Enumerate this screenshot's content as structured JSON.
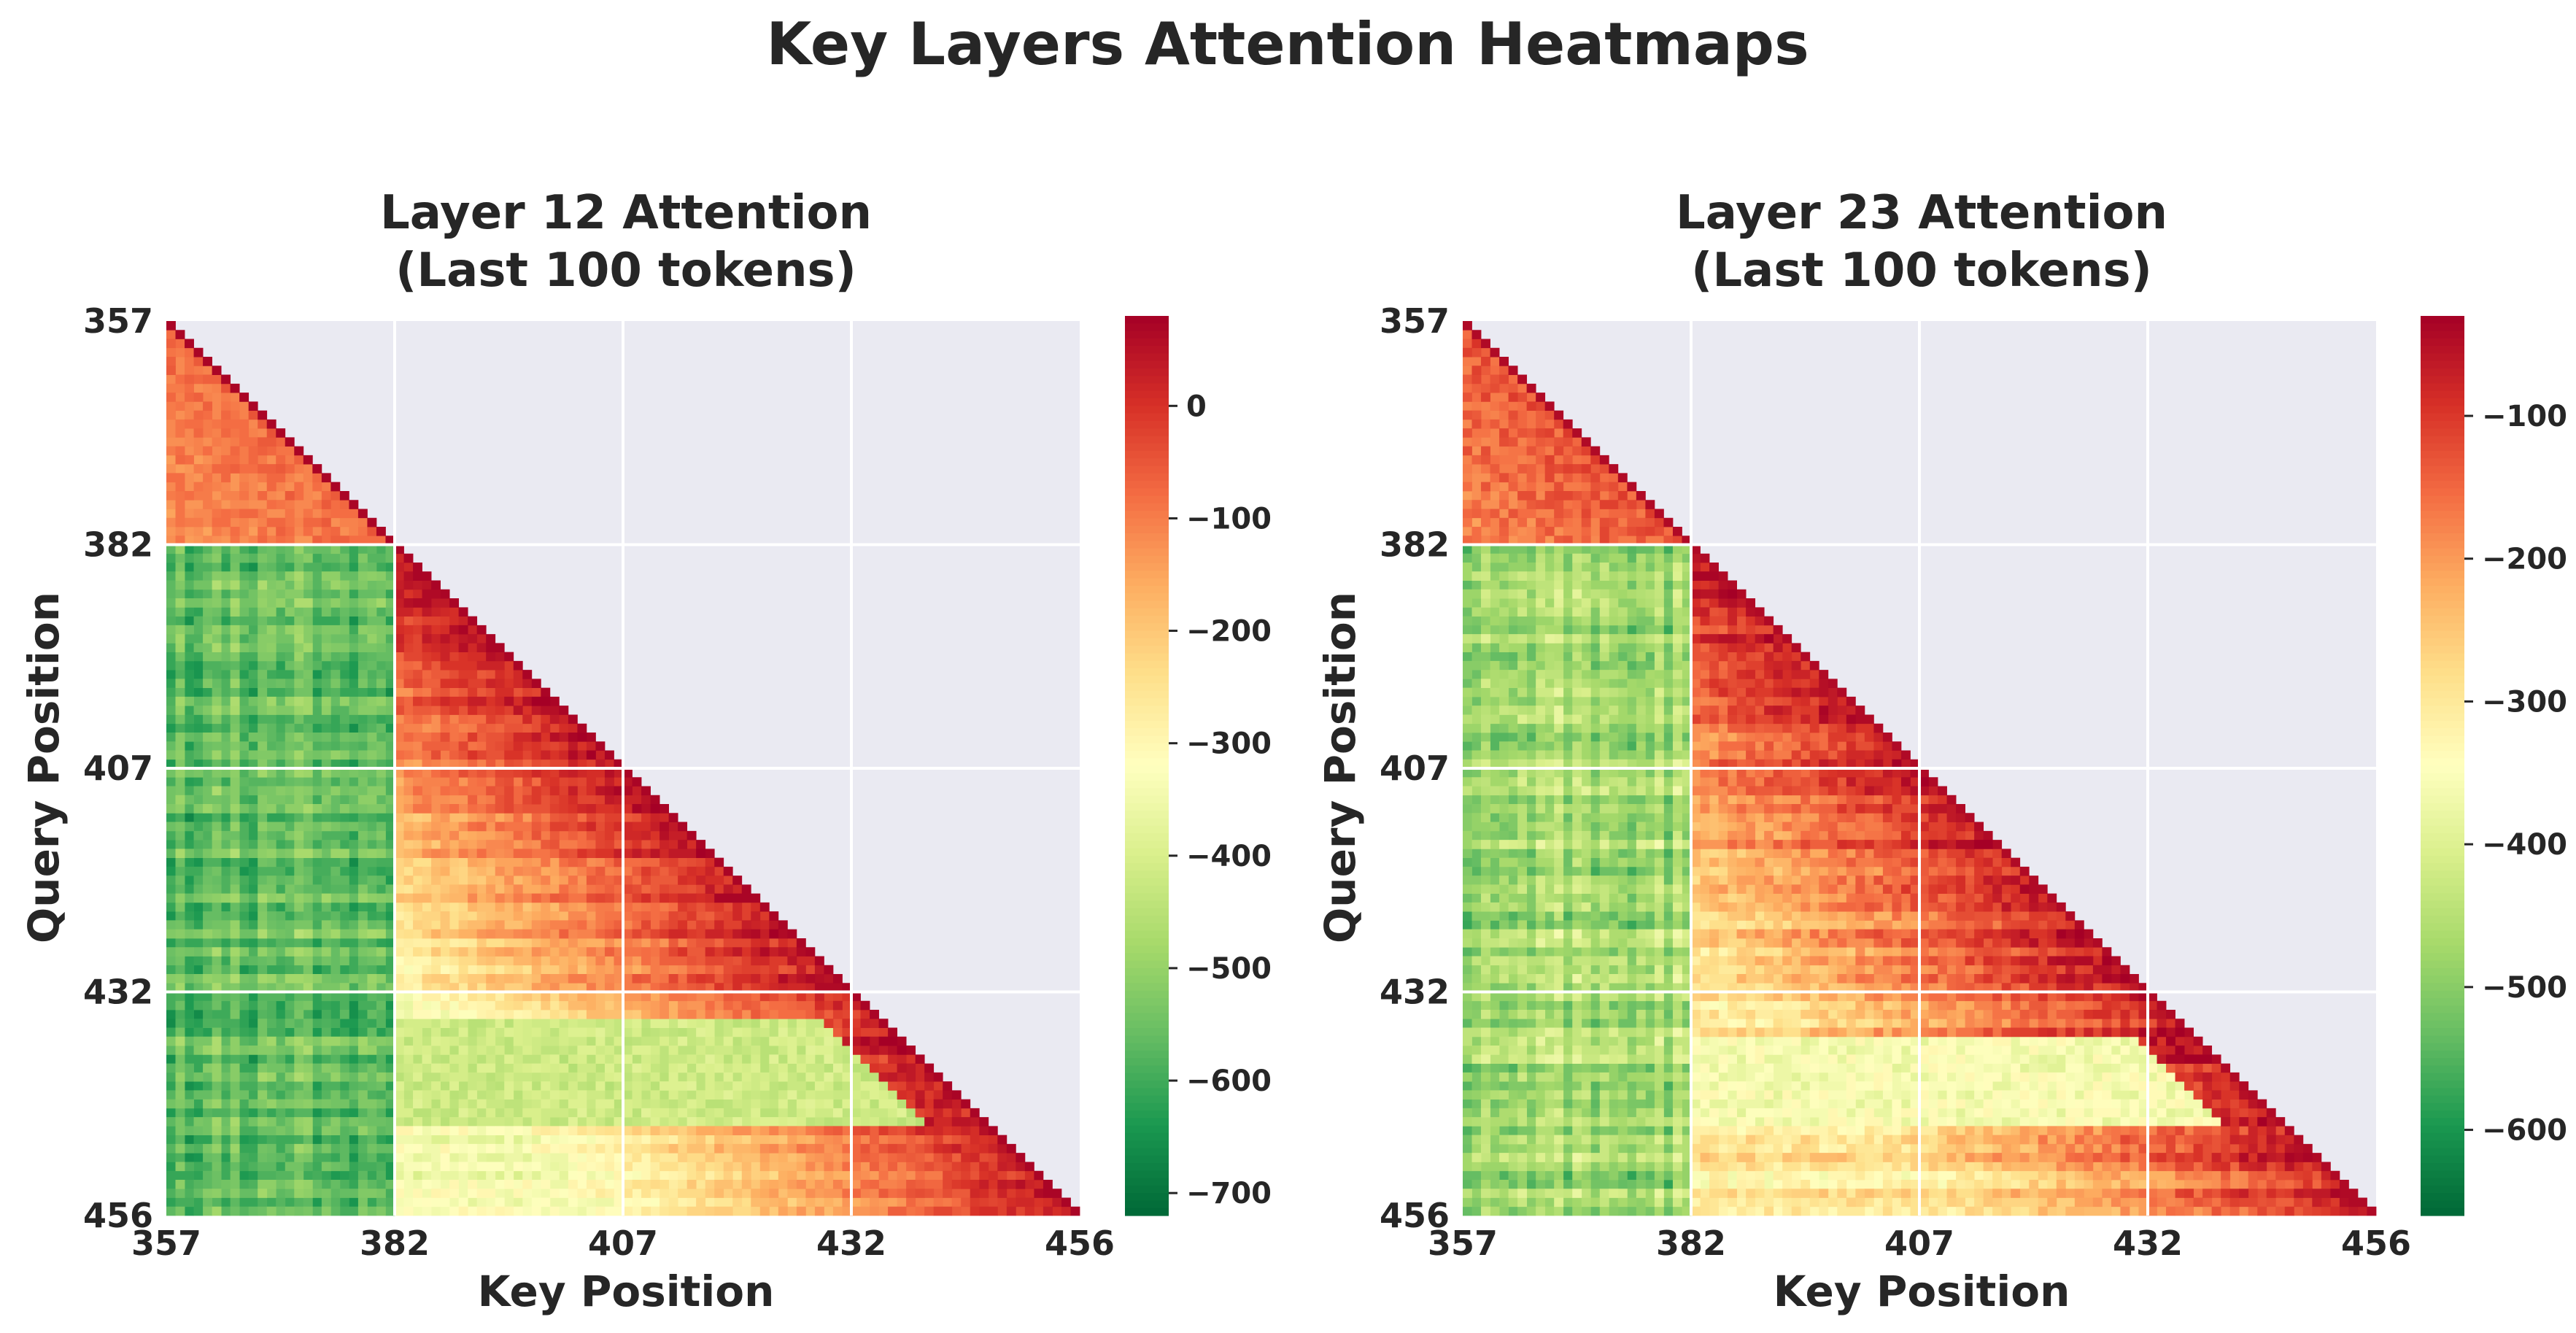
{
  "figure_title": "Key Layers Attention Heatmaps",
  "colormap": "RdYlGn",
  "colormap_stops": [
    "#006837",
    "#1a9850",
    "#66bd63",
    "#a6d96a",
    "#d9ef8b",
    "#ffffbf",
    "#fee08b",
    "#fdae61",
    "#f46d43",
    "#d73027",
    "#a50026"
  ],
  "mask_color": "#eaeaf2",
  "grid_color": "#ffffff",
  "chart_data": [
    {
      "type": "heatmap",
      "title_line1": "Layer 12 Attention",
      "title_line2": "(Last 100 tokens)",
      "xlabel": "Key Position",
      "ylabel": "Query Position",
      "position_range": [
        357,
        456
      ],
      "xticks": [
        "357",
        "382",
        "407",
        "432",
        "456"
      ],
      "yticks": [
        "357",
        "382",
        "407",
        "432",
        "456"
      ],
      "mask": "upper-triangle",
      "color_range": [
        -720,
        80
      ],
      "colorbar_ticks": [
        {
          "value": 0,
          "label": "0"
        },
        {
          "value": -100,
          "label": "−100"
        },
        {
          "value": -200,
          "label": "−200"
        },
        {
          "value": -300,
          "label": "−300"
        },
        {
          "value": -400,
          "label": "−400"
        },
        {
          "value": -500,
          "label": "−500"
        },
        {
          "value": -600,
          "label": "−600"
        },
        {
          "value": -700,
          "label": "−700"
        }
      ],
      "pattern": {
        "early_rows_end": 382,
        "early_value": -80,
        "sink_key_end": 382,
        "sink_value": -560,
        "diag_value": 40,
        "decay_per_token": 7,
        "floor_value": -330,
        "light_rows": [
          {
            "from": 435,
            "to": 446,
            "value": -420
          }
        ]
      }
    },
    {
      "type": "heatmap",
      "title_line1": "Layer 23 Attention",
      "title_line2": "(Last 100 tokens)",
      "xlabel": "Key Position",
      "ylabel": "Query Position",
      "position_range": [
        357,
        456
      ],
      "xticks": [
        "357",
        "382",
        "407",
        "432",
        "456"
      ],
      "yticks": [
        "357",
        "382",
        "407",
        "432",
        "456"
      ],
      "mask": "upper-triangle",
      "color_range": [
        -660,
        -30
      ],
      "colorbar_ticks": [
        {
          "value": -100,
          "label": "−100"
        },
        {
          "value": -200,
          "label": "−200"
        },
        {
          "value": -300,
          "label": "−300"
        },
        {
          "value": -400,
          "label": "−400"
        },
        {
          "value": -500,
          "label": "−500"
        },
        {
          "value": -600,
          "label": "−600"
        }
      ],
      "pattern": {
        "early_rows_end": 382,
        "early_value": -130,
        "sink_key_end": 382,
        "sink_value": -470,
        "diag_value": -70,
        "decay_per_token": 5,
        "floor_value": -300,
        "light_rows": [
          {
            "from": 437,
            "to": 446,
            "value": -360
          }
        ]
      }
    }
  ]
}
